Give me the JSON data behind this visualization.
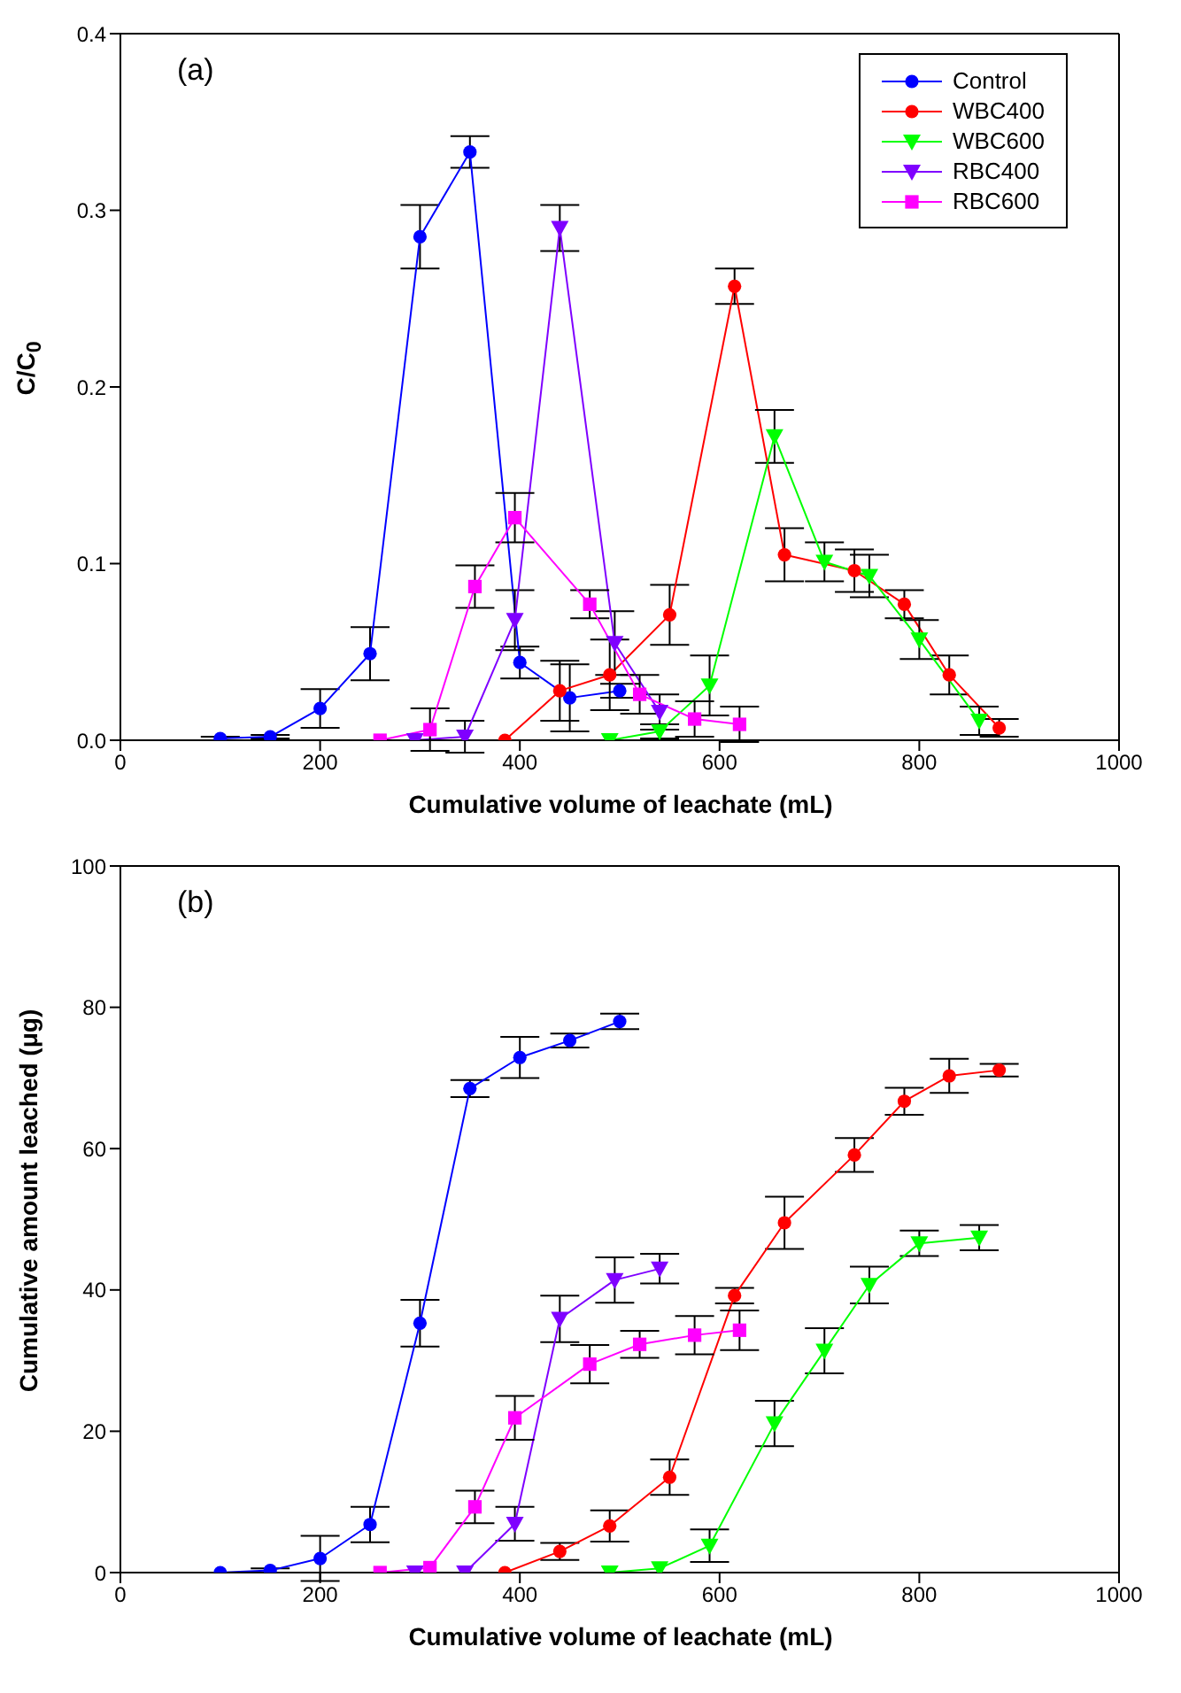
{
  "chart_data": [
    {
      "type": "line",
      "xlabel": "Cumulative volume of leachate (mL)",
      "ylabel": "C/C$_{0}$",
      "annotations": [
        "(a)"
      ],
      "xlim": [
        0,
        1000
      ],
      "xticks": [
        0,
        200,
        400,
        600,
        800,
        1000
      ],
      "ylim": [
        0,
        0.4
      ],
      "yticks": [
        {
          "value": 0,
          "label": "0.0"
        },
        0.1,
        0.2,
        0.3,
        0.4
      ],
      "legend": "top right",
      "grid": false,
      "line_style": "solid",
      "series": [
        {
          "name": "Control",
          "color": "#0000ff",
          "marker": "circle",
          "x": [
            100,
            150,
            200,
            250,
            300,
            350,
            400,
            450,
            500
          ],
          "values": [
            0.001,
            0.002,
            0.018,
            0.049,
            0.285,
            0.333,
            0.044,
            0.024,
            0.028
          ],
          "errors": [
            0.001,
            0.001,
            0.011,
            0.015,
            0.018,
            0.009,
            0.009,
            0.019,
            0.004
          ]
        },
        {
          "name": "WBC400",
          "color": "#ff0000",
          "marker": "circle",
          "x": [
            385,
            440,
            490,
            550,
            615,
            665,
            735,
            785,
            830,
            880
          ],
          "values": [
            0,
            0.028,
            0.037,
            0.071,
            0.257,
            0.105,
            0.096,
            0.077,
            0.037,
            0.007
          ],
          "errors": [
            null,
            0.017,
            0.02,
            0.017,
            0.01,
            0.015,
            0.012,
            0.008,
            0.011,
            0.005
          ]
        },
        {
          "name": "WBC600",
          "color": "#00ff00",
          "marker": "triangle",
          "x": [
            490,
            540,
            590,
            655,
            705,
            750,
            800,
            860
          ],
          "values": [
            0,
            0.005,
            0.031,
            0.172,
            0.101,
            0.093,
            0.057,
            0.011
          ],
          "errors": [
            null,
            0.004,
            0.017,
            0.015,
            0.011,
            0.012,
            0.011,
            0.008
          ]
        },
        {
          "name": "RBC400",
          "color": "#7f00ff",
          "marker": "triangle",
          "x": [
            295,
            345,
            395,
            440,
            495,
            540
          ],
          "values": [
            0,
            0.002,
            0.068,
            0.29,
            0.055,
            0.016
          ],
          "errors": [
            null,
            0.009,
            0.017,
            0.013,
            0.018,
            0.01
          ]
        },
        {
          "name": "RBC600",
          "color": "#ff00ff",
          "marker": "square",
          "x": [
            260,
            310,
            355,
            395,
            470,
            520,
            575,
            620
          ],
          "values": [
            0,
            0.006,
            0.087,
            0.126,
            0.077,
            0.026,
            0.012,
            0.009
          ],
          "errors": [
            null,
            0.012,
            0.012,
            0.014,
            0.008,
            0.011,
            0.01,
            0.01
          ]
        }
      ]
    },
    {
      "type": "line",
      "xlabel": "Cumulative volume of leachate (mL)",
      "ylabel": "Cumulative amount leached (μg)",
      "annotations": [
        "(b)"
      ],
      "xlim": [
        0,
        1000
      ],
      "xticks": [
        0,
        200,
        400,
        600,
        800,
        1000
      ],
      "ylim": [
        0,
        100
      ],
      "yticks": [
        0,
        20,
        40,
        60,
        80,
        100
      ],
      "legend": false,
      "grid": false,
      "line_style": "solid",
      "series": [
        {
          "color": "#0000ff",
          "marker": "circle",
          "x": [
            100,
            150,
            200,
            250,
            300,
            350,
            400,
            450,
            500
          ],
          "values": [
            0,
            0.3,
            2.0,
            6.8,
            35.3,
            68.5,
            72.9,
            75.3,
            78.0
          ],
          "errors": [
            null,
            0.3,
            3.2,
            2.5,
            3.3,
            1.2,
            2.9,
            1,
            1.1
          ]
        },
        {
          "color": "#ff0000",
          "marker": "circle",
          "x": [
            385,
            440,
            490,
            550,
            615,
            665,
            735,
            785,
            830,
            880
          ],
          "values": [
            0,
            3.0,
            6.6,
            13.5,
            39.2,
            49.5,
            59.1,
            66.7,
            70.3,
            71.1
          ],
          "errors": [
            null,
            1.2,
            2.2,
            2.5,
            1.1,
            3.7,
            2.4,
            1.9,
            2.4,
            0.9
          ]
        },
        {
          "color": "#00ff00",
          "marker": "triangle",
          "x": [
            490,
            540,
            590,
            655,
            705,
            750,
            800,
            860
          ],
          "values": [
            0,
            0.6,
            3.8,
            21.1,
            31.4,
            40.7,
            46.6,
            47.4
          ],
          "errors": [
            null,
            null,
            2.3,
            3.2,
            3.2,
            2.6,
            1.8,
            1.8
          ]
        },
        {
          "color": "#7f00ff",
          "marker": "triangle",
          "x": [
            295,
            345,
            395,
            440,
            495,
            540
          ],
          "values": [
            0,
            0,
            6.9,
            35.9,
            41.4,
            43.0
          ],
          "errors": [
            null,
            null,
            2.4,
            3.3,
            3.2,
            2.1
          ]
        },
        {
          "color": "#ff00ff",
          "marker": "square",
          "x": [
            260,
            310,
            355,
            395,
            470,
            520,
            575,
            620
          ],
          "values": [
            0,
            0.7,
            9.3,
            21.9,
            29.5,
            32.3,
            33.6,
            34.3
          ],
          "errors": [
            null,
            null,
            2.3,
            3.1,
            2.7,
            1.9,
            2.7,
            2.8
          ]
        }
      ]
    }
  ]
}
